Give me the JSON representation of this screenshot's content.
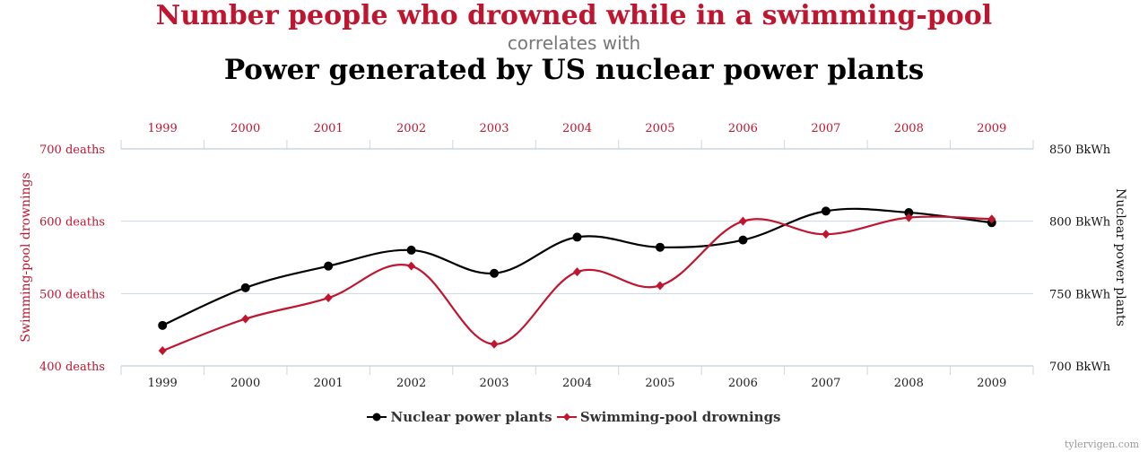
{
  "header": {
    "title": "Number people who drowned while in a swimming-pool",
    "connector": "correlates with",
    "subtitle": "Power generated by US nuclear power plants"
  },
  "credit": "tylervigen.com",
  "colors": {
    "drownings": "#c0152f",
    "nuclear": "#000000",
    "grid": "#ccd6e0",
    "axis_text_left": "#c0152f"
  },
  "chart_data": {
    "type": "line",
    "smooth": true,
    "title": "Number people who drowned while in a swimming-pool correlates with Power generated by US nuclear power plants",
    "categories": [
      "1999",
      "2000",
      "2001",
      "2002",
      "2003",
      "2004",
      "2005",
      "2006",
      "2007",
      "2008",
      "2009"
    ],
    "series": [
      {
        "name": "Nuclear power plants",
        "axis": "right",
        "marker": "circle",
        "color": "#000000",
        "values": [
          728,
          754,
          769,
          780,
          764,
          789,
          782,
          787,
          807,
          806,
          799
        ]
      },
      {
        "name": "Swimming-pool drownings",
        "axis": "left",
        "marker": "diamond",
        "color": "#c0152f",
        "values": [
          421,
          465,
          494,
          538,
          430,
          530,
          511,
          600,
          582,
          605,
          603
        ]
      }
    ],
    "y_left": {
      "label": "Swimming-pool drownings",
      "range": [
        400,
        700
      ],
      "ticks": [
        {
          "v": 400,
          "label": "400 deaths"
        },
        {
          "v": 500,
          "label": "500 deaths"
        },
        {
          "v": 600,
          "label": "600 deaths"
        },
        {
          "v": 700,
          "label": "700 deaths"
        }
      ]
    },
    "y_right": {
      "label": "Nuclear power plants",
      "range": [
        700,
        850
      ],
      "ticks": [
        {
          "v": 700,
          "label": "700 BkWh"
        },
        {
          "v": 750,
          "label": "750 BkWh"
        },
        {
          "v": 800,
          "label": "800 BkWh"
        },
        {
          "v": 850,
          "label": "850 BkWh"
        }
      ]
    },
    "x_axis_top": true,
    "x_axis_bottom": true,
    "grid": true,
    "legend": {
      "position": "bottom-center",
      "entries": [
        "Nuclear power plants",
        "Swimming-pool drownings"
      ]
    }
  }
}
